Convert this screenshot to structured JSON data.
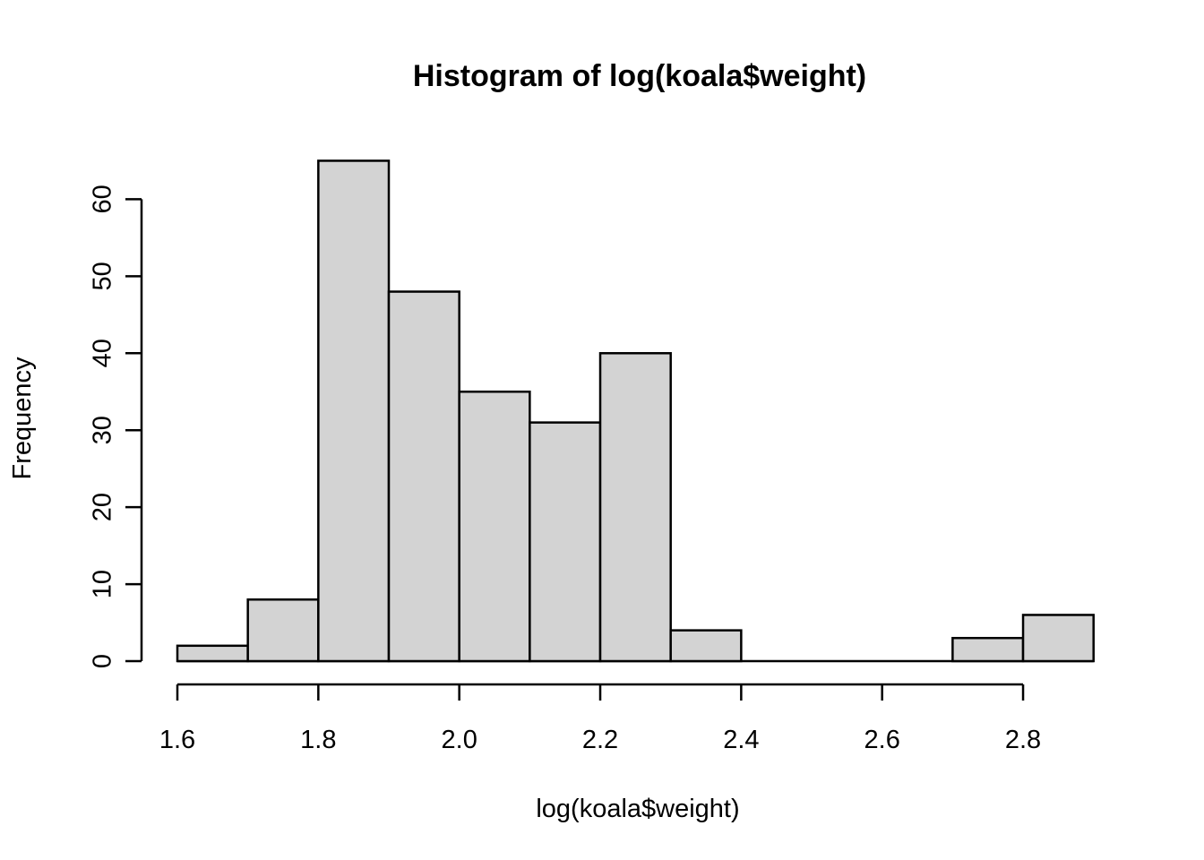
{
  "figure": {
    "title": "Histogram of log(koala$weight)"
  },
  "chart_data": {
    "type": "bar",
    "subtype": "histogram",
    "title": "Histogram of log(koala$weight)",
    "xlabel": "log(koala$weight)",
    "ylabel": "Frequency",
    "bin_width": 0.1,
    "bin_edges": [
      1.6,
      1.7,
      1.8,
      1.9,
      2.0,
      2.1,
      2.2,
      2.3,
      2.4,
      2.5,
      2.6,
      2.7,
      2.8,
      2.9
    ],
    "counts": [
      2,
      8,
      65,
      48,
      35,
      31,
      40,
      4,
      0,
      0,
      0,
      3,
      6
    ],
    "x_tick_values": [
      1.6,
      1.8,
      2.0,
      2.2,
      2.4,
      2.6,
      2.8
    ],
    "x_tick_labels": [
      "1.6",
      "1.8",
      "2.0",
      "2.2",
      "2.4",
      "2.6",
      "2.8"
    ],
    "y_tick_values": [
      0,
      10,
      20,
      30,
      40,
      50,
      60
    ],
    "y_tick_labels": [
      "0",
      "10",
      "20",
      "30",
      "40",
      "50",
      "60"
    ],
    "xlim": [
      1.6,
      2.9
    ],
    "ylim": [
      0,
      65
    ],
    "grid": false,
    "legend": null,
    "colors": {
      "bar_fill": "#d3d3d3",
      "bar_stroke": "#000000",
      "axis": "#000000",
      "text": "#000000",
      "background": "#ffffff"
    }
  }
}
